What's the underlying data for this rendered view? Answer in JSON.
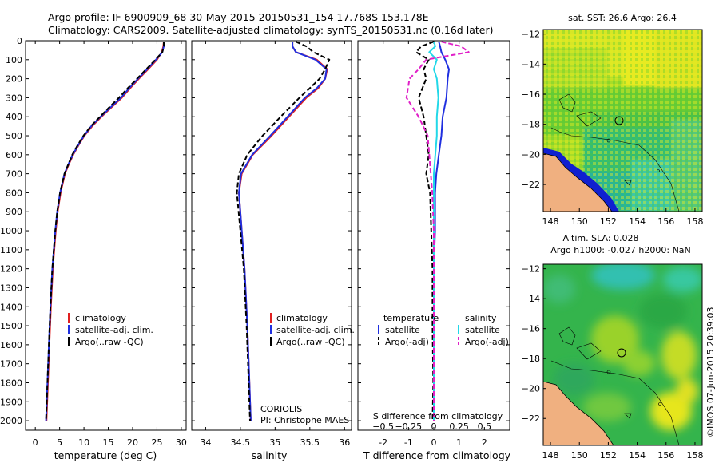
{
  "header": {
    "title_line1": "Argo profile: IF 6900909_68 30-May-2015 20150531_154 17.768S 153.178E",
    "title_line2": "Climatology: CARS2009. Satellite-adjusted climatology: synTS_20150531.nc (0.16d later)"
  },
  "side_text": "©IMOS 07-Jun-2015 20:39:03",
  "colors": {
    "climatology": "#e02020",
    "satellite": "#1f2fe0",
    "argo": "#000000",
    "salinity_satellite": "#22d8e8",
    "salinity_argo": "#e020c8",
    "land": "#f0b080"
  },
  "chart_data": [
    {
      "type": "line",
      "xlabel": "temperature (deg C)",
      "ylim": [
        0,
        2050
      ],
      "xlim": [
        -2,
        31
      ],
      "xticks": [
        0,
        5,
        10,
        15,
        20,
        25,
        30
      ],
      "yticks": [
        0,
        100,
        200,
        300,
        400,
        500,
        600,
        700,
        800,
        900,
        1000,
        1100,
        1200,
        1300,
        1400,
        1500,
        1600,
        1700,
        1800,
        1900,
        2000
      ],
      "legend": [
        "climatology",
        "satellite-adj. clim.",
        "Argo(..raw -QC)"
      ],
      "depth": [
        5,
        30,
        60,
        100,
        150,
        200,
        250,
        300,
        350,
        400,
        450,
        500,
        550,
        600,
        650,
        700,
        800,
        900,
        1000,
        1200,
        1400,
        1600,
        1800,
        2000
      ],
      "series": [
        {
          "name": "climatology",
          "values": [
            26.4,
            26.3,
            26.0,
            25.0,
            23.2,
            21.3,
            19.5,
            17.8,
            15.7,
            13.6,
            11.7,
            10.1,
            8.9,
            7.8,
            6.9,
            6.1,
            5.2,
            4.6,
            4.2,
            3.6,
            3.2,
            2.9,
            2.6,
            2.3
          ]
        },
        {
          "name": "satellite-adj. clim.",
          "values": [
            26.5,
            26.4,
            26.1,
            24.8,
            23.0,
            21.1,
            19.3,
            17.6,
            15.5,
            13.4,
            11.5,
            10.0,
            8.8,
            7.7,
            6.8,
            6.0,
            5.1,
            4.5,
            4.1,
            3.5,
            3.1,
            2.8,
            2.5,
            2.2
          ]
        },
        {
          "name": "Argo(..raw -QC)",
          "values": [
            26.4,
            26.4,
            26.1,
            24.7,
            22.8,
            20.9,
            19.0,
            17.2,
            15.2,
            13.3,
            11.4,
            9.9,
            8.7,
            7.6,
            6.8,
            6.0,
            5.1,
            4.5,
            4.1,
            3.5,
            3.1,
            2.8,
            2.5,
            2.2
          ]
        }
      ]
    },
    {
      "type": "line",
      "xlabel": "salinity",
      "ylim": [
        0,
        2050
      ],
      "xlim": [
        33.8,
        36.1
      ],
      "xticks": [
        34,
        34.5,
        35,
        35.5,
        36
      ],
      "xtick_labels": [
        "34",
        "34.5",
        "35",
        "35.5",
        "36"
      ],
      "legend": [
        "climatology",
        "satellite-adj. clim.",
        "Argo(..raw -QC)"
      ],
      "annotations": [
        "CORIOLIS",
        "PI: Christophe MAES"
      ],
      "depth": [
        5,
        30,
        60,
        100,
        150,
        200,
        250,
        300,
        400,
        500,
        600,
        700,
        800,
        1000,
        1200,
        1500,
        1800,
        2000
      ],
      "series": [
        {
          "name": "climatology",
          "values": [
            35.25,
            35.25,
            35.3,
            35.6,
            35.75,
            35.72,
            35.62,
            35.45,
            35.2,
            34.95,
            34.68,
            34.52,
            34.48,
            34.52,
            34.56,
            34.6,
            34.63,
            34.65
          ]
        },
        {
          "name": "satellite-adj. clim.",
          "values": [
            35.25,
            35.25,
            35.3,
            35.58,
            35.74,
            35.72,
            35.6,
            35.43,
            35.18,
            34.93,
            34.67,
            34.51,
            34.48,
            34.52,
            34.56,
            34.6,
            34.63,
            34.65
          ]
        },
        {
          "name": "Argo(..raw -QC)",
          "values": [
            35.3,
            35.45,
            35.55,
            35.78,
            35.72,
            35.64,
            35.5,
            35.35,
            35.08,
            34.82,
            34.6,
            34.48,
            34.45,
            34.5,
            34.55,
            34.59,
            34.62,
            34.64
          ]
        }
      ]
    },
    {
      "type": "line",
      "xlabel": "T difference from climatology",
      "xlabel_top": "S difference from climatology",
      "ylim": [
        0,
        2050
      ],
      "xlim": [
        -3,
        3
      ],
      "xticks": [
        -2,
        -1,
        0,
        1,
        2
      ],
      "xticks_s": [
        -0.5,
        -0.25,
        0,
        0.25,
        0.5
      ],
      "xtick_s_labels": [
        "−0.5",
        "−0.25",
        "0",
        "0.25",
        "0.5"
      ],
      "legend_temperature_title": "temperature",
      "legend_salinity_title": "salinity",
      "legend": [
        "satellite",
        "Argo(-adj)",
        "satellite",
        "Argo(-adj)"
      ],
      "depth": [
        5,
        30,
        60,
        100,
        150,
        200,
        300,
        400,
        500,
        600,
        700,
        800,
        1000,
        1200,
        1500,
        1800,
        2000
      ],
      "series": [
        {
          "name": "temperature satellite",
          "values": [
            0.2,
            0.25,
            0.3,
            0.45,
            0.6,
            0.55,
            0.5,
            0.35,
            0.3,
            0.2,
            0.1,
            0.05,
            0.05,
            0.0,
            0.0,
            0.0,
            0.0
          ]
        },
        {
          "name": "temperature Argo(-adj)",
          "values": [
            0.0,
            -0.5,
            -0.7,
            -0.2,
            -0.4,
            -0.3,
            -0.6,
            -0.4,
            -0.3,
            -0.2,
            -0.3,
            -0.15,
            -0.1,
            -0.05,
            -0.05,
            -0.02,
            -0.05
          ]
        },
        {
          "name": "salinity satellite",
          "values": [
            0.0,
            0.01,
            -0.03,
            0.02,
            0.0,
            0.02,
            0.03,
            0.02,
            0.02,
            0.01,
            0.0,
            0.0,
            0.0,
            0.0,
            0.0,
            0.0,
            0.0
          ]
        },
        {
          "name": "salinity Argo(-adj)",
          "values": [
            0.05,
            0.18,
            0.23,
            -0.05,
            -0.1,
            -0.16,
            -0.18,
            -0.1,
            -0.04,
            -0.03,
            -0.02,
            -0.01,
            0.0,
            0.0,
            0.0,
            0.0,
            0.0
          ]
        }
      ]
    },
    {
      "type": "heatmap",
      "title": "sat. SST: 26.6 Argo: 26.4",
      "xticks": [
        148,
        150,
        152,
        154,
        156,
        158
      ],
      "yticks": [
        -12,
        -14,
        -16,
        -18,
        -20,
        -22
      ],
      "xlim": [
        147.5,
        158.5
      ],
      "ylim": [
        -23.8,
        -11.7
      ],
      "marker": [
        153.178,
        -17.768
      ]
    },
    {
      "type": "heatmap",
      "title_line1": "Altim. SLA: 0.028",
      "title_line2": "Argo h1000: -0.027 h2000: NaN",
      "xticks": [
        148,
        150,
        152,
        154,
        156,
        158
      ],
      "yticks": [
        -12,
        -14,
        -16,
        -18,
        -20,
        -22
      ],
      "xlim": [
        147.5,
        158.5
      ],
      "ylim": [
        -23.8,
        -11.7
      ],
      "marker": [
        153.178,
        -17.768
      ]
    }
  ]
}
